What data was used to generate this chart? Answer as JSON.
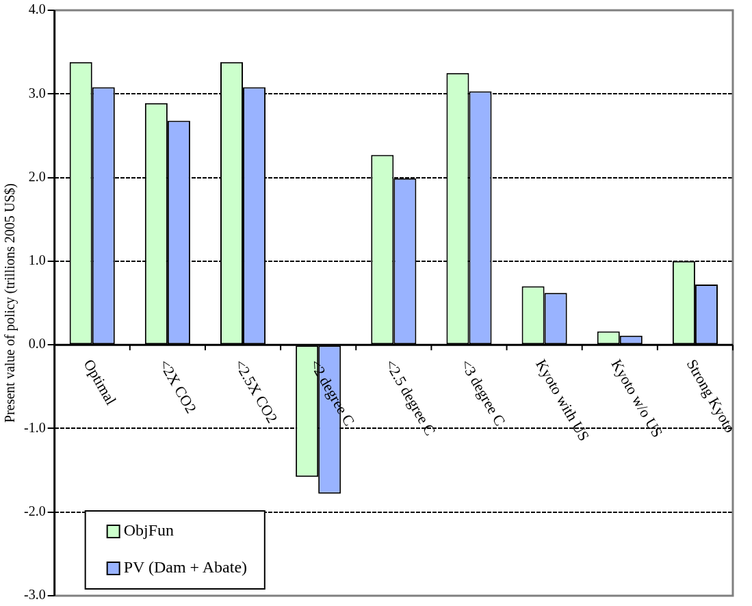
{
  "chart_data": {
    "type": "bar",
    "ylabel": "Present value of policy (trillions 2005 US$)",
    "categories": [
      "Optimal",
      "<2X CO2",
      "<2.5X CO2",
      "<2 degree C",
      "<2.5 degree C",
      "<3 degree C",
      "Kyoto with US",
      "Kyoto w/o US",
      "Strong Kyoto"
    ],
    "series": [
      {
        "name": "ObjFun",
        "color": "#ccffcc",
        "values": [
          3.38,
          2.89,
          3.38,
          -1.58,
          2.27,
          3.25,
          0.7,
          0.16,
          1.0
        ]
      },
      {
        "name": "PV (Dam + Abate)",
        "color": "#99b3ff",
        "values": [
          3.08,
          2.68,
          3.08,
          -1.78,
          1.99,
          3.03,
          0.62,
          0.11,
          0.72
        ]
      }
    ],
    "ylim": [
      -3,
      4
    ],
    "yticks": [
      {
        "value": -3,
        "label": "-3.0"
      },
      {
        "value": -2,
        "label": "-2.0"
      },
      {
        "value": -1,
        "label": "-1.0"
      },
      {
        "value": 0,
        "label": "0.0"
      },
      {
        "value": 1,
        "label": "1.0"
      },
      {
        "value": 2,
        "label": "2.0"
      },
      {
        "value": 3,
        "label": "3.0"
      },
      {
        "value": 4,
        "label": "4.0"
      }
    ],
    "grid": "y",
    "legend": "bottom left"
  }
}
